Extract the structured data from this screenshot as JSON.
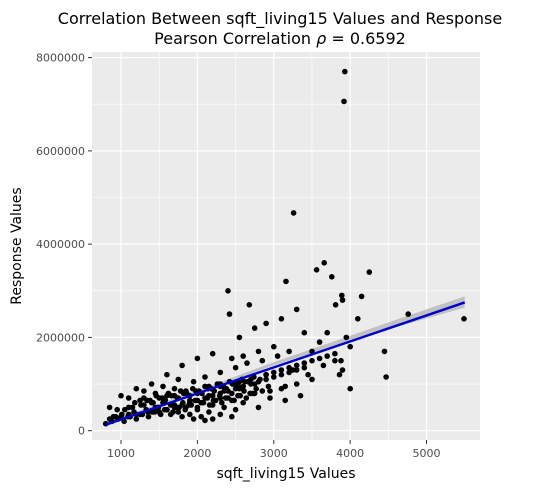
{
  "chart_data": {
    "type": "scatter",
    "title": "Correlation Between sqft_living15 Values and Response",
    "subtitle_prefix": "Pearson Correlation ",
    "subtitle_symbol": "ρ",
    "subtitle_value": " = 0.6592",
    "xlabel": "sqft_living15 Values",
    "ylabel": "Response Values",
    "xlim": [
      620,
      5700
    ],
    "ylim": [
      -200000,
      8120000
    ],
    "x_ticks": [
      1000,
      2000,
      3000,
      4000,
      5000
    ],
    "y_ticks": [
      0,
      2000000,
      4000000,
      6000000,
      8000000
    ],
    "x_tick_labels": [
      "1000",
      "2000",
      "3000",
      "4000",
      "5000"
    ],
    "y_tick_labels": [
      "0",
      "2000000",
      "4000000",
      "6000000",
      "8000000"
    ],
    "grid": true,
    "colors": {
      "panel": "#ebebeb",
      "grid_major": "#ffffff",
      "point": "#000000",
      "fit_line": "#0000cc",
      "confidence_band": "#b3b3b3"
    },
    "fit_line": {
      "x": [
        800,
        5500
      ],
      "y": [
        130000,
        2750000
      ]
    },
    "confidence_band": {
      "x": [
        800,
        1500,
        2200,
        3000,
        3800,
        4600,
        5500
      ],
      "lower": [
        80000,
        520000,
        930000,
        1400000,
        1820000,
        2220000,
        2640000
      ],
      "upper": [
        180000,
        580000,
        980000,
        1470000,
        1920000,
        2380000,
        2880000
      ]
    },
    "points": {
      "x": [
        3930,
        3920,
        3260,
        3660,
        4250,
        4150,
        3890,
        2400,
        2680,
        3160,
        3560,
        3760,
        3810,
        3900,
        4100,
        4760,
        5490,
        3950,
        4000,
        3880,
        3860,
        3400,
        3600,
        2550,
        2750,
        2900,
        3100,
        3300,
        3700,
        4450,
        4470,
        2420,
        2600,
        2800,
        3000,
        3200,
        3500,
        3800,
        2200,
        2450,
        2650,
        2850,
        3050,
        3250,
        3450,
        3650,
        3900,
        2000,
        2300,
        2500,
        2700,
        2900,
        3100,
        3300,
        3500,
        4000,
        1800,
        2100,
        2300,
        2550,
        2750,
        2950,
        3150,
        3350,
        1600,
        1750,
        1950,
        2150,
        2350,
        2550,
        2750,
        2950,
        3150,
        1400,
        1550,
        1700,
        1850,
        2000,
        2150,
        2300,
        2450,
        2600,
        2800,
        1200,
        1300,
        1450,
        1600,
        1750,
        1900,
        2050,
        2200,
        2350,
        2500,
        1000,
        1100,
        1250,
        1400,
        1550,
        1700,
        1850,
        2000,
        2150,
        2300,
        2450,
        850,
        950,
        1050,
        1150,
        1300,
        1450,
        1600,
        1750,
        1900,
        2050,
        2200,
        900,
        1000,
        1100,
        1200,
        1350,
        1500,
        1650,
        1800,
        1950,
        2100,
        800,
        880,
        960,
        1040,
        1120,
        1200,
        1280,
        1360,
        1440,
        1520,
        1600,
        1680,
        1760,
        1840,
        1920,
        2000,
        2080,
        2160,
        2240,
        2320,
        2400,
        2480,
        2560,
        2640,
        2720,
        850,
        930,
        1010,
        1090,
        1170,
        1250,
        1330,
        1410,
        1490,
        1570,
        1650,
        1730,
        1810,
        1890,
        1970,
        2050,
        2130,
        2210,
        2290,
        2370,
        2450,
        2530,
        2610,
        2690,
        2770,
        2850,
        2930,
        1100,
        1180,
        1260,
        1340,
        1420,
        1500,
        1580,
        1660,
        1740,
        1820,
        1900,
        1980,
        2060,
        2140,
        2220,
        2300,
        2380,
        2460,
        2540,
        2620,
        1300,
        1380,
        1460,
        1540,
        1620,
        1700,
        1780,
        1860,
        1940,
        2020,
        2100,
        2180,
        2260,
        2340,
        2420,
        2500,
        2580,
        2660,
        2740,
        2820,
        2900,
        3000,
        3100,
        3200,
        3300,
        3400,
        3500,
        3600,
        3700,
        3800,
        1500,
        1600,
        1700,
        1800,
        1900,
        2000,
        2100,
        2200,
        2300,
        2400,
        2500,
        2600,
        2700,
        2800,
        2900,
        3000,
        3100,
        3200,
        3300,
        3400
      ],
      "y": [
        7700000,
        7060000,
        4670000,
        3600000,
        3400000,
        2880000,
        2900000,
        3000000,
        2700000,
        3200000,
        3450000,
        3300000,
        2700000,
        2800000,
        2400000,
        2500000,
        2400000,
        2000000,
        1800000,
        1500000,
        1200000,
        2100000,
        1900000,
        2000000,
        2200000,
        2300000,
        2400000,
        2600000,
        2100000,
        1700000,
        1150000,
        2500000,
        1600000,
        1700000,
        1800000,
        1700000,
        1700000,
        1500000,
        1650000,
        1550000,
        1450000,
        1500000,
        1600000,
        1300000,
        1200000,
        1400000,
        1300000,
        1550000,
        1250000,
        1350000,
        1100000,
        1200000,
        900000,
        1000000,
        1100000,
        900000,
        1400000,
        1150000,
        1000000,
        1050000,
        1000000,
        850000,
        950000,
        750000,
        1200000,
        1100000,
        1050000,
        950000,
        850000,
        900000,
        800000,
        700000,
        650000,
        1000000,
        950000,
        900000,
        850000,
        800000,
        750000,
        700000,
        650000,
        600000,
        500000,
        900000,
        850000,
        800000,
        750000,
        700000,
        650000,
        600000,
        550000,
        500000,
        450000,
        750000,
        700000,
        650000,
        600000,
        600000,
        550000,
        500000,
        450000,
        400000,
        350000,
        300000,
        500000,
        450000,
        450000,
        500000,
        550000,
        500000,
        450000,
        400000,
        350000,
        300000,
        250000,
        300000,
        300000,
        350000,
        350000,
        400000,
        400000,
        350000,
        300000,
        250000,
        220000,
        150000,
        200000,
        250000,
        200000,
        300000,
        250000,
        350000,
        300000,
        400000,
        350000,
        450000,
        400000,
        500000,
        450000,
        550000,
        500000,
        600000,
        550000,
        650000,
        600000,
        700000,
        650000,
        750000,
        700000,
        800000,
        250000,
        300000,
        350000,
        300000,
        400000,
        350000,
        450000,
        400000,
        500000,
        450000,
        550000,
        500000,
        600000,
        550000,
        650000,
        600000,
        700000,
        650000,
        750000,
        700000,
        800000,
        750000,
        850000,
        800000,
        900000,
        850000,
        950000,
        500000,
        600000,
        550000,
        650000,
        600000,
        700000,
        650000,
        750000,
        700000,
        800000,
        750000,
        850000,
        800000,
        900000,
        850000,
        950000,
        900000,
        1000000,
        950000,
        1050000,
        700000,
        650000,
        750000,
        700000,
        800000,
        750000,
        850000,
        800000,
        900000,
        850000,
        950000,
        900000,
        1000000,
        950000,
        1050000,
        1000000,
        1100000,
        1050000,
        1150000,
        1100000,
        1200000,
        1250000,
        1300000,
        1350000,
        1400000,
        1450000,
        1500000,
        1550000,
        1600000,
        1650000,
        400000,
        450000,
        500000,
        550000,
        600000,
        650000,
        700000,
        750000,
        800000,
        850000,
        900000,
        950000,
        1000000,
        1050000,
        1100000,
        1150000,
        1200000,
        1250000,
        1300000,
        1350000
      ]
    }
  }
}
